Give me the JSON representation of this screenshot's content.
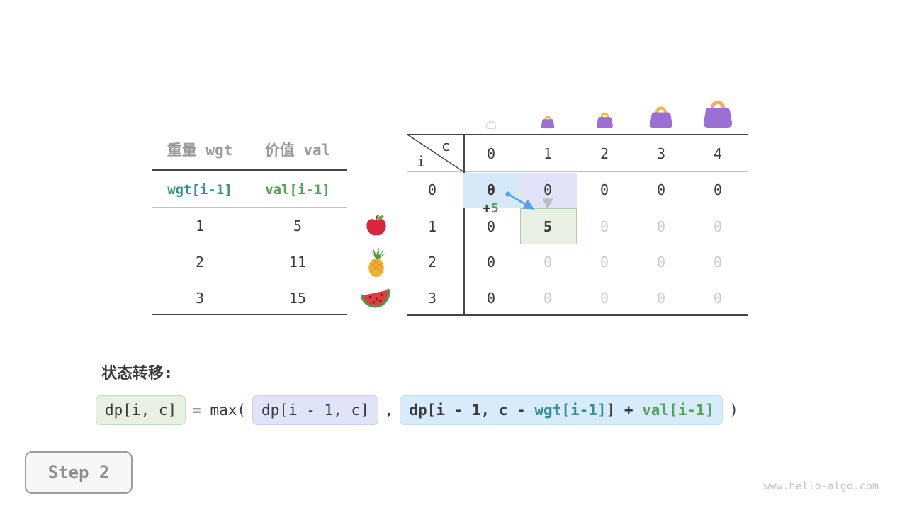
{
  "page": {
    "watermark": "www.hello-algo.com"
  },
  "step_button": {
    "label": "Step 2"
  },
  "items_table": {
    "col_headers": [
      "重量 wgt",
      "价值 val"
    ],
    "index_row": [
      "wgt[i-1]",
      "val[i-1]"
    ],
    "rows": [
      {
        "wgt": "1",
        "val": "5",
        "icon": "apple-icon"
      },
      {
        "wgt": "2",
        "val": "11",
        "icon": "pineapple-icon"
      },
      {
        "wgt": "3",
        "val": "15",
        "icon": "watermelon-icon"
      }
    ]
  },
  "dp_table": {
    "corner": {
      "top": "c",
      "bottom": "i"
    },
    "col_headers": [
      "0",
      "1",
      "2",
      "3",
      "4"
    ],
    "row_headers": [
      "0",
      "1",
      "2",
      "3"
    ],
    "bags": [
      "bag-icon-ghost",
      "bag-icon-1",
      "bag-icon-2",
      "bag-icon-3",
      "bag-icon-4"
    ],
    "cells": [
      [
        {
          "v": "0",
          "bold": true,
          "bg": "blue"
        },
        {
          "v": "0",
          "bg": "lavender"
        },
        {
          "v": "0"
        },
        {
          "v": "0"
        },
        {
          "v": "0"
        }
      ],
      [
        {
          "v": "0"
        },
        {
          "v": "5",
          "bold": true,
          "bg": "green"
        },
        {
          "v": "0",
          "dim": true
        },
        {
          "v": "0",
          "dim": true
        },
        {
          "v": "0",
          "dim": true
        }
      ],
      [
        {
          "v": "0"
        },
        {
          "v": "0",
          "dim": true
        },
        {
          "v": "0",
          "dim": true
        },
        {
          "v": "0",
          "dim": true
        },
        {
          "v": "0",
          "dim": true
        }
      ],
      [
        {
          "v": "0"
        },
        {
          "v": "0",
          "dim": true
        },
        {
          "v": "0",
          "dim": true
        },
        {
          "v": "0",
          "dim": true
        },
        {
          "v": "0",
          "dim": true
        }
      ]
    ],
    "annotation": {
      "plus": "+",
      "value": "5"
    }
  },
  "transition": {
    "heading": "状态转移:",
    "lhs": "dp[i, c]",
    "operator": "= max(",
    "arg1": "dp[i - 1, c]",
    "separator": ",",
    "arg2": {
      "pre": "dp[i - 1, c - ",
      "wgt": "wgt[i-1]",
      "mid": "] + ",
      "val": "val[i-1]"
    },
    "close": ")"
  },
  "colors": {
    "highlight_blue": "#d6e9f8",
    "highlight_lavender": "#e1e4f8",
    "highlight_green": "#e7f0e3",
    "green_cell_border": "#a9cda5",
    "text_teal": "#35908e",
    "text_green": "#55a05a",
    "text_dim": "#cccccc",
    "arrow_blue": "#54a3ea",
    "arrow_gray": "#bcbcbc",
    "bag_purple": "#9c6fd4",
    "bag_handle": "#f3b14e"
  }
}
